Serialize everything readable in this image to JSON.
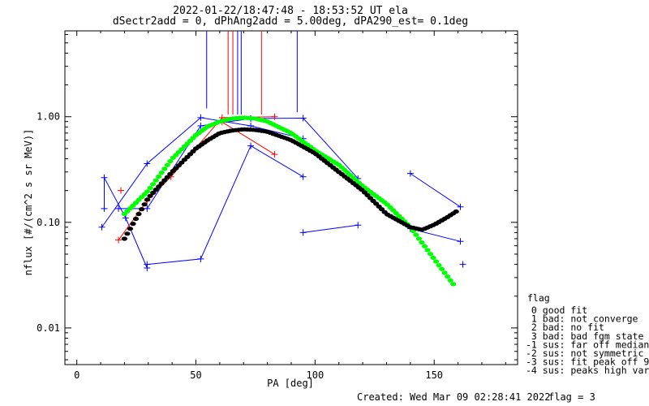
{
  "title_line1": "2022-01-22/18:47:48 - 18:53:52 UT ela",
  "title_line2": "dSectr2add = 0, dPhAng2add = 5.00deg, dPA290_est=   0.1deg",
  "footer": {
    "created": "Created: Wed Mar 09 02:28:41 2022",
    "flag": "flag = 3"
  },
  "legend": {
    "title": "flag",
    "entries": [
      " 0 good fit",
      " 1 bad: not converge",
      " 2 bad: no fit",
      " 3 bad: bad fgm state",
      "-1 sus: far off median",
      "-2 sus: not symmetric",
      "-3 sus: fit peak off 90",
      "-4 sus: peaks high var"
    ]
  },
  "colors": {
    "blue": "#0000ff",
    "red": "#ff0000",
    "green": "#00ff00",
    "black": "#000000"
  },
  "chart_data": {
    "type": "scatter",
    "xlabel": "PA [deg]",
    "ylabel": "nflux [#/(cm^2 s sr MeV)]",
    "xlim": [
      -5,
      185
    ],
    "ylim": [
      0.0045,
      6.5
    ],
    "yscale": "log",
    "xticks": [
      0,
      50,
      100,
      150
    ],
    "xtick_labels": [
      "0",
      "50",
      "100",
      "150"
    ],
    "yticks": [
      0.01,
      0.1,
      1.0
    ],
    "ytick_labels": [
      "0.01",
      "0.10",
      "1.00"
    ],
    "vertical_lines": [
      {
        "color": "blue",
        "x": 54.5,
        "y_from": 1.2
      },
      {
        "color": "red",
        "x": 63.5,
        "y_from": 1.05
      },
      {
        "color": "red",
        "x": 65.5,
        "y_from": 1.05
      },
      {
        "color": "blue",
        "x": 67.5,
        "y_from": 1.05
      },
      {
        "color": "blue",
        "x": 69.0,
        "y_from": 1.05
      },
      {
        "color": "red",
        "x": 77.5,
        "y_from": 1.05
      },
      {
        "color": "blue",
        "x": 92.5,
        "y_from": 1.1
      }
    ],
    "series": [
      {
        "color": "blue",
        "points": [
          [
            11.5,
            0.135
          ],
          [
            11.5,
            0.265
          ],
          [
            20.5,
            0.11
          ],
          [
            29.5,
            0.037
          ]
        ]
      },
      {
        "color": "blue",
        "points": [
          [
            29.5,
            0.04
          ],
          [
            52,
            0.045
          ],
          [
            73,
            0.53
          ],
          [
            95,
            0.27
          ]
        ]
      },
      {
        "color": "blue",
        "points": [
          [
            10.5,
            0.09
          ],
          [
            29.5,
            0.36
          ],
          [
            52,
            0.98
          ],
          [
            73,
            0.82
          ],
          [
            95,
            0.62
          ]
        ]
      },
      {
        "color": "blue",
        "points": [
          [
            17.5,
            0.135
          ],
          [
            29.5,
            0.135
          ],
          [
            52,
            0.82
          ],
          [
            73,
            0.96
          ],
          [
            95,
            0.97
          ],
          [
            118,
            0.26
          ]
        ]
      },
      {
        "color": "blue",
        "points": [
          [
            95,
            0.08
          ],
          [
            118,
            0.094
          ]
        ]
      },
      {
        "color": "blue",
        "points": [
          [
            140,
            0.29
          ],
          [
            161,
            0.14
          ]
        ]
      },
      {
        "color": "blue",
        "points": [
          [
            140,
            0.087
          ],
          [
            161,
            0.066
          ]
        ]
      },
      {
        "color": "blue",
        "points": [
          [
            162,
            0.04
          ]
        ]
      },
      {
        "color": "red",
        "points": [
          [
            17.5,
            0.068
          ],
          [
            29.5,
            0.16
          ],
          [
            39.5,
            0.27
          ],
          [
            61,
            0.98
          ],
          [
            83,
            1.0
          ]
        ]
      },
      {
        "color": "red",
        "points": [
          [
            18.5,
            0.2
          ]
        ]
      },
      {
        "color": "red",
        "points": [
          [
            61,
            0.89
          ],
          [
            83,
            0.44
          ]
        ]
      }
    ],
    "fits": [
      {
        "name": "",
        "color": "green",
        "x": [
          20,
          30,
          40,
          50,
          55,
          60,
          65,
          70,
          75,
          80,
          90,
          100,
          110,
          120,
          130,
          140,
          150,
          158
        ],
        "y": [
          0.12,
          0.2,
          0.4,
          0.67,
          0.81,
          0.9,
          0.96,
          0.98,
          0.96,
          0.9,
          0.7,
          0.48,
          0.35,
          0.22,
          0.15,
          0.09,
          0.045,
          0.026
        ]
      },
      {
        "name": "",
        "color": "black",
        "x": [
          20,
          25,
          30,
          40,
          50,
          55,
          60,
          65,
          70,
          75,
          80,
          90,
          100,
          110,
          120,
          130,
          140,
          145,
          150,
          155,
          160
        ],
        "y": [
          0.07,
          0.11,
          0.17,
          0.3,
          0.5,
          0.6,
          0.7,
          0.74,
          0.76,
          0.75,
          0.72,
          0.6,
          0.45,
          0.3,
          0.2,
          0.12,
          0.09,
          0.085,
          0.095,
          0.11,
          0.13
        ]
      }
    ]
  }
}
